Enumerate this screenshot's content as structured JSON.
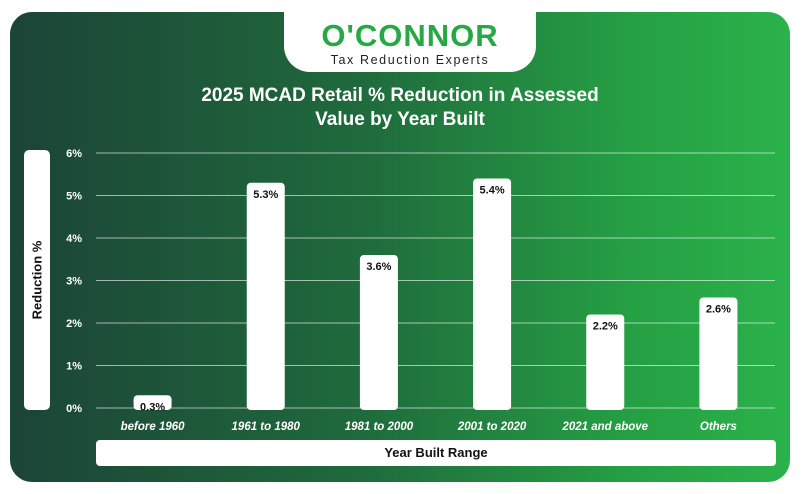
{
  "brand": {
    "name": "O'CONNOR",
    "tagline": "Tax Reduction Experts"
  },
  "colors": {
    "brand_green": "#27a845",
    "bar_fill": "#ffffff",
    "background_dark": "#1c4437",
    "background_light": "#2bb24a"
  },
  "chart_data": {
    "type": "bar",
    "title_line1": "2025 MCAD Retail % Reduction in Assessed",
    "title_line2": "Value by Year Built",
    "xlabel": "Year Built Range",
    "ylabel": "Reduction %",
    "categories": [
      "before 1960",
      "1961 to 1980",
      "1981 to 2000",
      "2001 to 2020",
      "2021 and above",
      "Others"
    ],
    "values": [
      0.3,
      5.3,
      3.6,
      5.4,
      2.2,
      2.6
    ],
    "value_labels": [
      "0.3%",
      "5.3%",
      "3.6%",
      "5.4%",
      "2.2%",
      "2.6%"
    ],
    "yticks": [
      0,
      1,
      2,
      3,
      4,
      5,
      6
    ],
    "ytick_labels": [
      "0%",
      "1%",
      "2%",
      "3%",
      "4%",
      "5%",
      "6%"
    ],
    "ylim": [
      0,
      6
    ],
    "grid": true,
    "legend": "none"
  }
}
